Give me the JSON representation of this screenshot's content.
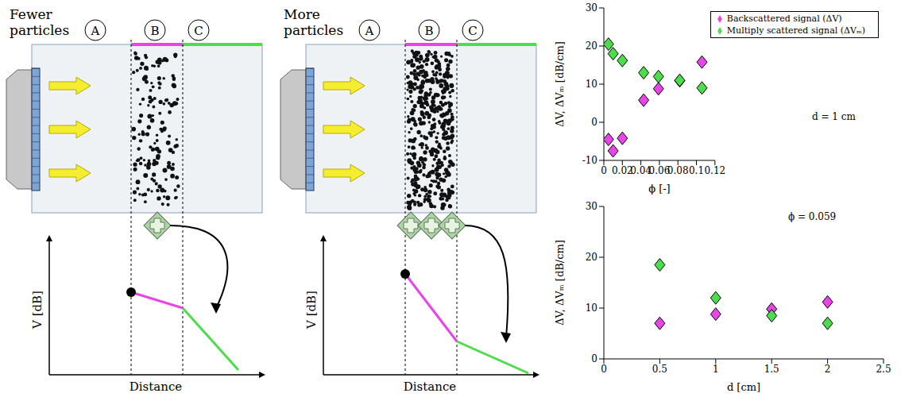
{
  "diagram": {
    "panels": [
      {
        "label": "Fewer particles",
        "regions": [
          "A",
          "B",
          "C"
        ],
        "y_label": "V [dB]",
        "x_label": "Distance"
      },
      {
        "label": "More particles",
        "regions": [
          "A",
          "B",
          "C"
        ],
        "y_label": "V [dB]",
        "x_label": "Distance"
      }
    ]
  },
  "chart_data": [
    {
      "type": "scatter",
      "x_label": "ϕ [-]",
      "y_label": "ΔV, ΔVₘ [dB/cm]",
      "annotation": "d = 1 cm",
      "xlim": [
        0,
        0.12
      ],
      "xticks": [
        0,
        0.02,
        0.04,
        0.06,
        0.08,
        0.1,
        0.12
      ],
      "ylim": [
        -10,
        30
      ],
      "yticks": [
        -10,
        0,
        10,
        20,
        30
      ],
      "legend": "upper right",
      "marker": "diamond",
      "x": [
        0.005,
        0.01,
        0.02,
        0.043,
        0.059,
        0.082,
        0.106
      ],
      "series": [
        {
          "name": "Backscattered signal (ΔV)",
          "color": "#e845e8",
          "values": [
            -4.5,
            -7.5,
            -4.2,
            5.8,
            8.8,
            10.9,
            15.8
          ]
        },
        {
          "name": "Multiply scattered signal (ΔVₘ)",
          "color": "#4cdc4c",
          "values": [
            20.5,
            18,
            16.2,
            13,
            12,
            11,
            9
          ]
        }
      ]
    },
    {
      "type": "scatter",
      "x_label": "d [cm]",
      "y_label": "ΔV, ΔVₘ [dB/cm]",
      "annotation": "ϕ = 0.059",
      "xlim": [
        0,
        2.5
      ],
      "xticks": [
        0,
        0.5,
        1,
        1.5,
        2,
        2.5
      ],
      "ylim": [
        0,
        30
      ],
      "yticks": [
        0,
        10,
        20,
        30
      ],
      "legend": false,
      "marker": "diamond",
      "x": [
        0.5,
        1,
        1.5,
        2
      ],
      "series": [
        {
          "name": "Backscattered signal (ΔV)",
          "color": "#e845e8",
          "values": [
            7,
            8.8,
            9.8,
            11.2
          ]
        },
        {
          "name": "Multiply scattered signal (ΔVₘ)",
          "color": "#4cdc4c",
          "values": [
            18.5,
            12,
            8.5,
            7
          ]
        }
      ]
    }
  ]
}
